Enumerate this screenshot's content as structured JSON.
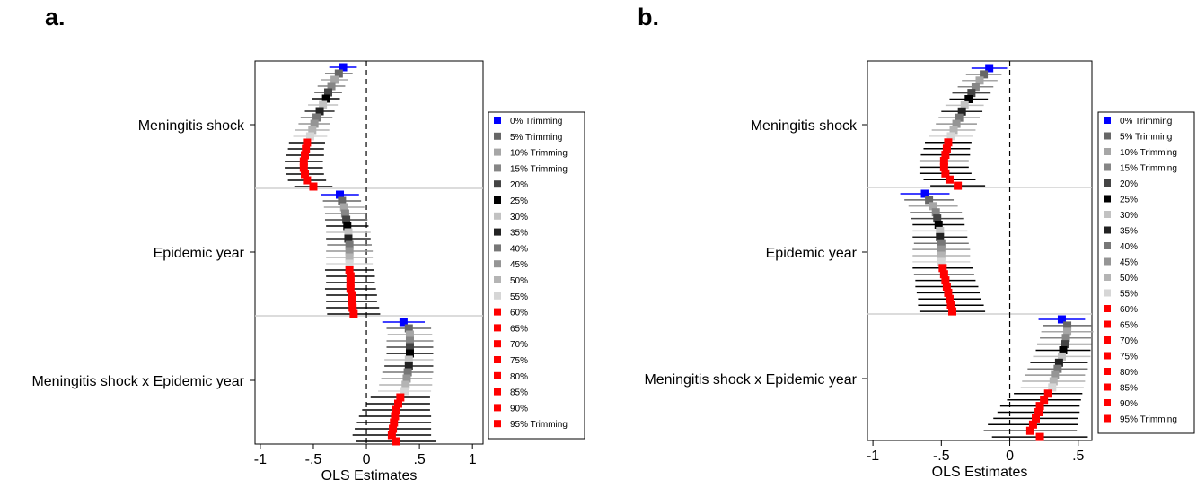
{
  "figure": {
    "panel_labels": [
      "a.",
      "b."
    ]
  },
  "chart_data": [
    {
      "type": "scatter",
      "panel": "a.",
      "xlabel": "OLS Estimates",
      "ylabel": "",
      "xlim": [
        -1.05,
        1.1
      ],
      "xticks": [
        -1,
        -0.5,
        0,
        0.5,
        1
      ],
      "xtick_labels": [
        "-1",
        "-.5",
        "0",
        ".5",
        "1"
      ],
      "reference_line_x": 0,
      "categories": [
        "Meningitis shock",
        "Epidemic year",
        "Meningitis shock x Epidemic year"
      ],
      "trimming_levels": [
        "0%",
        "5%",
        "10%",
        "15%",
        "20%",
        "25%",
        "30%",
        "35%",
        "40%",
        "45%",
        "50%",
        "55%",
        "60%",
        "65%",
        "70%",
        "75%",
        "80%",
        "85%",
        "90%",
        "95%"
      ],
      "series": [
        {
          "name": "Meningitis shock",
          "estimates": [
            -0.22,
            -0.26,
            -0.3,
            -0.33,
            -0.36,
            -0.38,
            -0.41,
            -0.44,
            -0.47,
            -0.49,
            -0.51,
            -0.53,
            -0.56,
            -0.57,
            -0.58,
            -0.59,
            -0.59,
            -0.58,
            -0.56,
            -0.5
          ],
          "ci_half_width": [
            0.13,
            0.13,
            0.13,
            0.13,
            0.13,
            0.13,
            0.14,
            0.14,
            0.15,
            0.15,
            0.16,
            0.16,
            0.17,
            0.17,
            0.18,
            0.18,
            0.18,
            0.18,
            0.18,
            0.18
          ]
        },
        {
          "name": "Epidemic year",
          "estimates": [
            -0.25,
            -0.23,
            -0.21,
            -0.2,
            -0.19,
            -0.18,
            -0.17,
            -0.17,
            -0.16,
            -0.16,
            -0.16,
            -0.16,
            -0.16,
            -0.15,
            -0.15,
            -0.15,
            -0.14,
            -0.14,
            -0.13,
            -0.12
          ],
          "ci_half_width": [
            0.18,
            0.18,
            0.19,
            0.19,
            0.2,
            0.2,
            0.21,
            0.21,
            0.21,
            0.22,
            0.22,
            0.22,
            0.23,
            0.23,
            0.23,
            0.24,
            0.24,
            0.24,
            0.25,
            0.25
          ]
        },
        {
          "name": "Meningitis shock x Epidemic year",
          "estimates": [
            0.35,
            0.4,
            0.41,
            0.41,
            0.41,
            0.41,
            0.4,
            0.4,
            0.39,
            0.38,
            0.37,
            0.36,
            0.32,
            0.3,
            0.28,
            0.27,
            0.26,
            0.25,
            0.24,
            0.28
          ],
          "ci_half_width": [
            0.2,
            0.21,
            0.21,
            0.22,
            0.22,
            0.22,
            0.23,
            0.23,
            0.24,
            0.24,
            0.25,
            0.25,
            0.28,
            0.3,
            0.32,
            0.34,
            0.35,
            0.36,
            0.37,
            0.38
          ]
        }
      ]
    },
    {
      "type": "scatter",
      "panel": "b.",
      "xlabel": "OLS Estimates",
      "ylabel": "",
      "xlim": [
        -1.04,
        0.6
      ],
      "xticks": [
        -1,
        -0.5,
        0,
        0.5
      ],
      "xtick_labels": [
        "-1",
        "-.5",
        "0",
        ".5"
      ],
      "reference_line_x": 0,
      "categories": [
        "Meningitis shock",
        "Epidemic year",
        "Meningitis shock x Epidemic year"
      ],
      "trimming_levels": [
        "0%",
        "5%",
        "10%",
        "15%",
        "20%",
        "25%",
        "30%",
        "35%",
        "40%",
        "45%",
        "50%",
        "55%",
        "60%",
        "65%",
        "70%",
        "75%",
        "80%",
        "85%",
        "90%",
        "95%"
      ],
      "series": [
        {
          "name": "Meningitis shock",
          "estimates": [
            -0.15,
            -0.19,
            -0.22,
            -0.25,
            -0.28,
            -0.3,
            -0.33,
            -0.35,
            -0.37,
            -0.39,
            -0.41,
            -0.43,
            -0.45,
            -0.46,
            -0.47,
            -0.48,
            -0.48,
            -0.47,
            -0.44,
            -0.38
          ],
          "ci_half_width": [
            0.13,
            0.13,
            0.13,
            0.13,
            0.14,
            0.14,
            0.14,
            0.15,
            0.15,
            0.15,
            0.16,
            0.16,
            0.17,
            0.17,
            0.18,
            0.18,
            0.18,
            0.19,
            0.19,
            0.2
          ]
        },
        {
          "name": "Epidemic year",
          "estimates": [
            -0.62,
            -0.59,
            -0.56,
            -0.54,
            -0.53,
            -0.52,
            -0.51,
            -0.51,
            -0.5,
            -0.5,
            -0.5,
            -0.5,
            -0.49,
            -0.48,
            -0.47,
            -0.46,
            -0.45,
            -0.44,
            -0.43,
            -0.42
          ],
          "ci_half_width": [
            0.18,
            0.18,
            0.18,
            0.19,
            0.19,
            0.19,
            0.2,
            0.2,
            0.2,
            0.21,
            0.21,
            0.21,
            0.22,
            0.22,
            0.22,
            0.23,
            0.23,
            0.23,
            0.24,
            0.24
          ]
        },
        {
          "name": "Meningitis shock x Epidemic year",
          "estimates": [
            0.38,
            0.42,
            0.42,
            0.41,
            0.4,
            0.39,
            0.38,
            0.36,
            0.35,
            0.33,
            0.32,
            0.31,
            0.28,
            0.25,
            0.22,
            0.21,
            0.19,
            0.17,
            0.15,
            0.22
          ],
          "ci_half_width": [
            0.17,
            0.18,
            0.19,
            0.19,
            0.2,
            0.2,
            0.21,
            0.21,
            0.22,
            0.22,
            0.23,
            0.23,
            0.25,
            0.27,
            0.29,
            0.3,
            0.31,
            0.33,
            0.34,
            0.35
          ]
        }
      ]
    }
  ],
  "legend": {
    "placement": "right",
    "entries": [
      {
        "label": "0% Trimming",
        "color": "#0000ff"
      },
      {
        "label": "5% Trimming",
        "color": "#676767"
      },
      {
        "label": "10% Trimming",
        "color": "#a6a6a6"
      },
      {
        "label": "15% Trimming",
        "color": "#868686"
      },
      {
        "label": "20%",
        "color": "#444444"
      },
      {
        "label": "25%",
        "color": "#000000"
      },
      {
        "label": "30%",
        "color": "#c2c2c2"
      },
      {
        "label": "35%",
        "color": "#222222"
      },
      {
        "label": "40%",
        "color": "#777777"
      },
      {
        "label": "45%",
        "color": "#959595"
      },
      {
        "label": "50%",
        "color": "#b4b4b4"
      },
      {
        "label": "55%",
        "color": "#d6d6d6"
      },
      {
        "label": "60%",
        "color": "#ff0000"
      },
      {
        "label": "65%",
        "color": "#ff0000"
      },
      {
        "label": "70%",
        "color": "#ff0000"
      },
      {
        "label": "75%",
        "color": "#ff0000"
      },
      {
        "label": "80%",
        "color": "#ff0000"
      },
      {
        "label": "85%",
        "color": "#ff0000"
      },
      {
        "label": "90%",
        "color": "#ff0000"
      },
      {
        "label": "95% Trimming",
        "color": "#ff0000"
      }
    ]
  }
}
